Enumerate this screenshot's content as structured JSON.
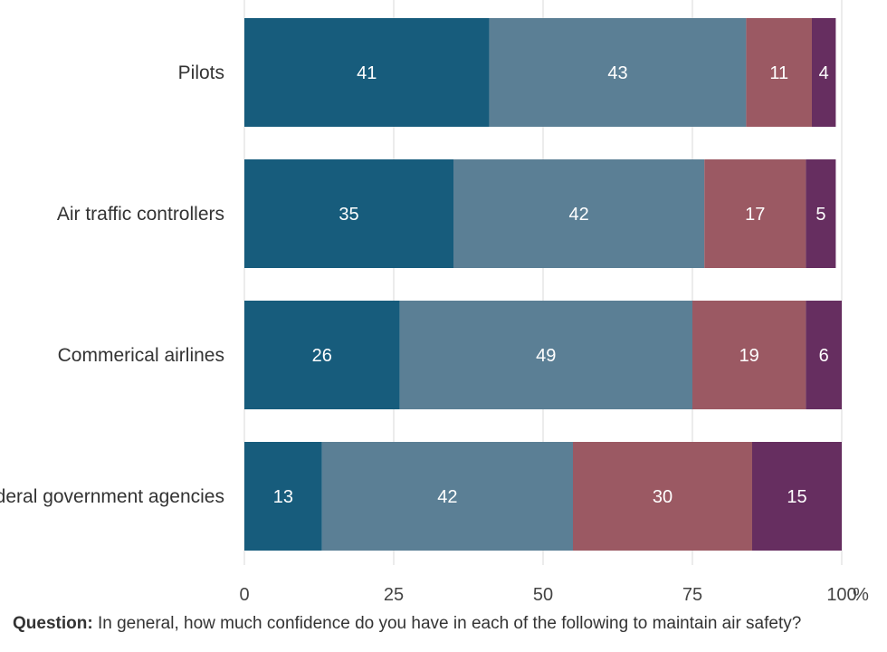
{
  "chart_data": {
    "type": "bar",
    "orientation": "horizontal",
    "stacked": true,
    "categories": [
      "Pilots",
      "Air traffic controllers",
      "Commerical airlines",
      "Federal government agencies"
    ],
    "series": [
      {
        "values": [
          41,
          35,
          26,
          13
        ],
        "color": "#175c7c"
      },
      {
        "values": [
          43,
          42,
          49,
          42
        ],
        "color": "#5b7f95"
      },
      {
        "values": [
          11,
          17,
          19,
          30
        ],
        "color": "#9b5963"
      },
      {
        "values": [
          4,
          5,
          6,
          15
        ],
        "color": "#662e60"
      }
    ],
    "xlim": [
      0,
      100
    ],
    "x_ticks": [
      0,
      25,
      50,
      75,
      100
    ],
    "x_tick_labels": [
      "0",
      "25",
      "50",
      "75",
      "100"
    ],
    "x_unit": "%",
    "grid": "vertical",
    "legend": "none"
  },
  "footer": {
    "question_label": "Question:",
    "question_text": " In general, how much confidence do you have in each of the following to maintain air safety?"
  }
}
